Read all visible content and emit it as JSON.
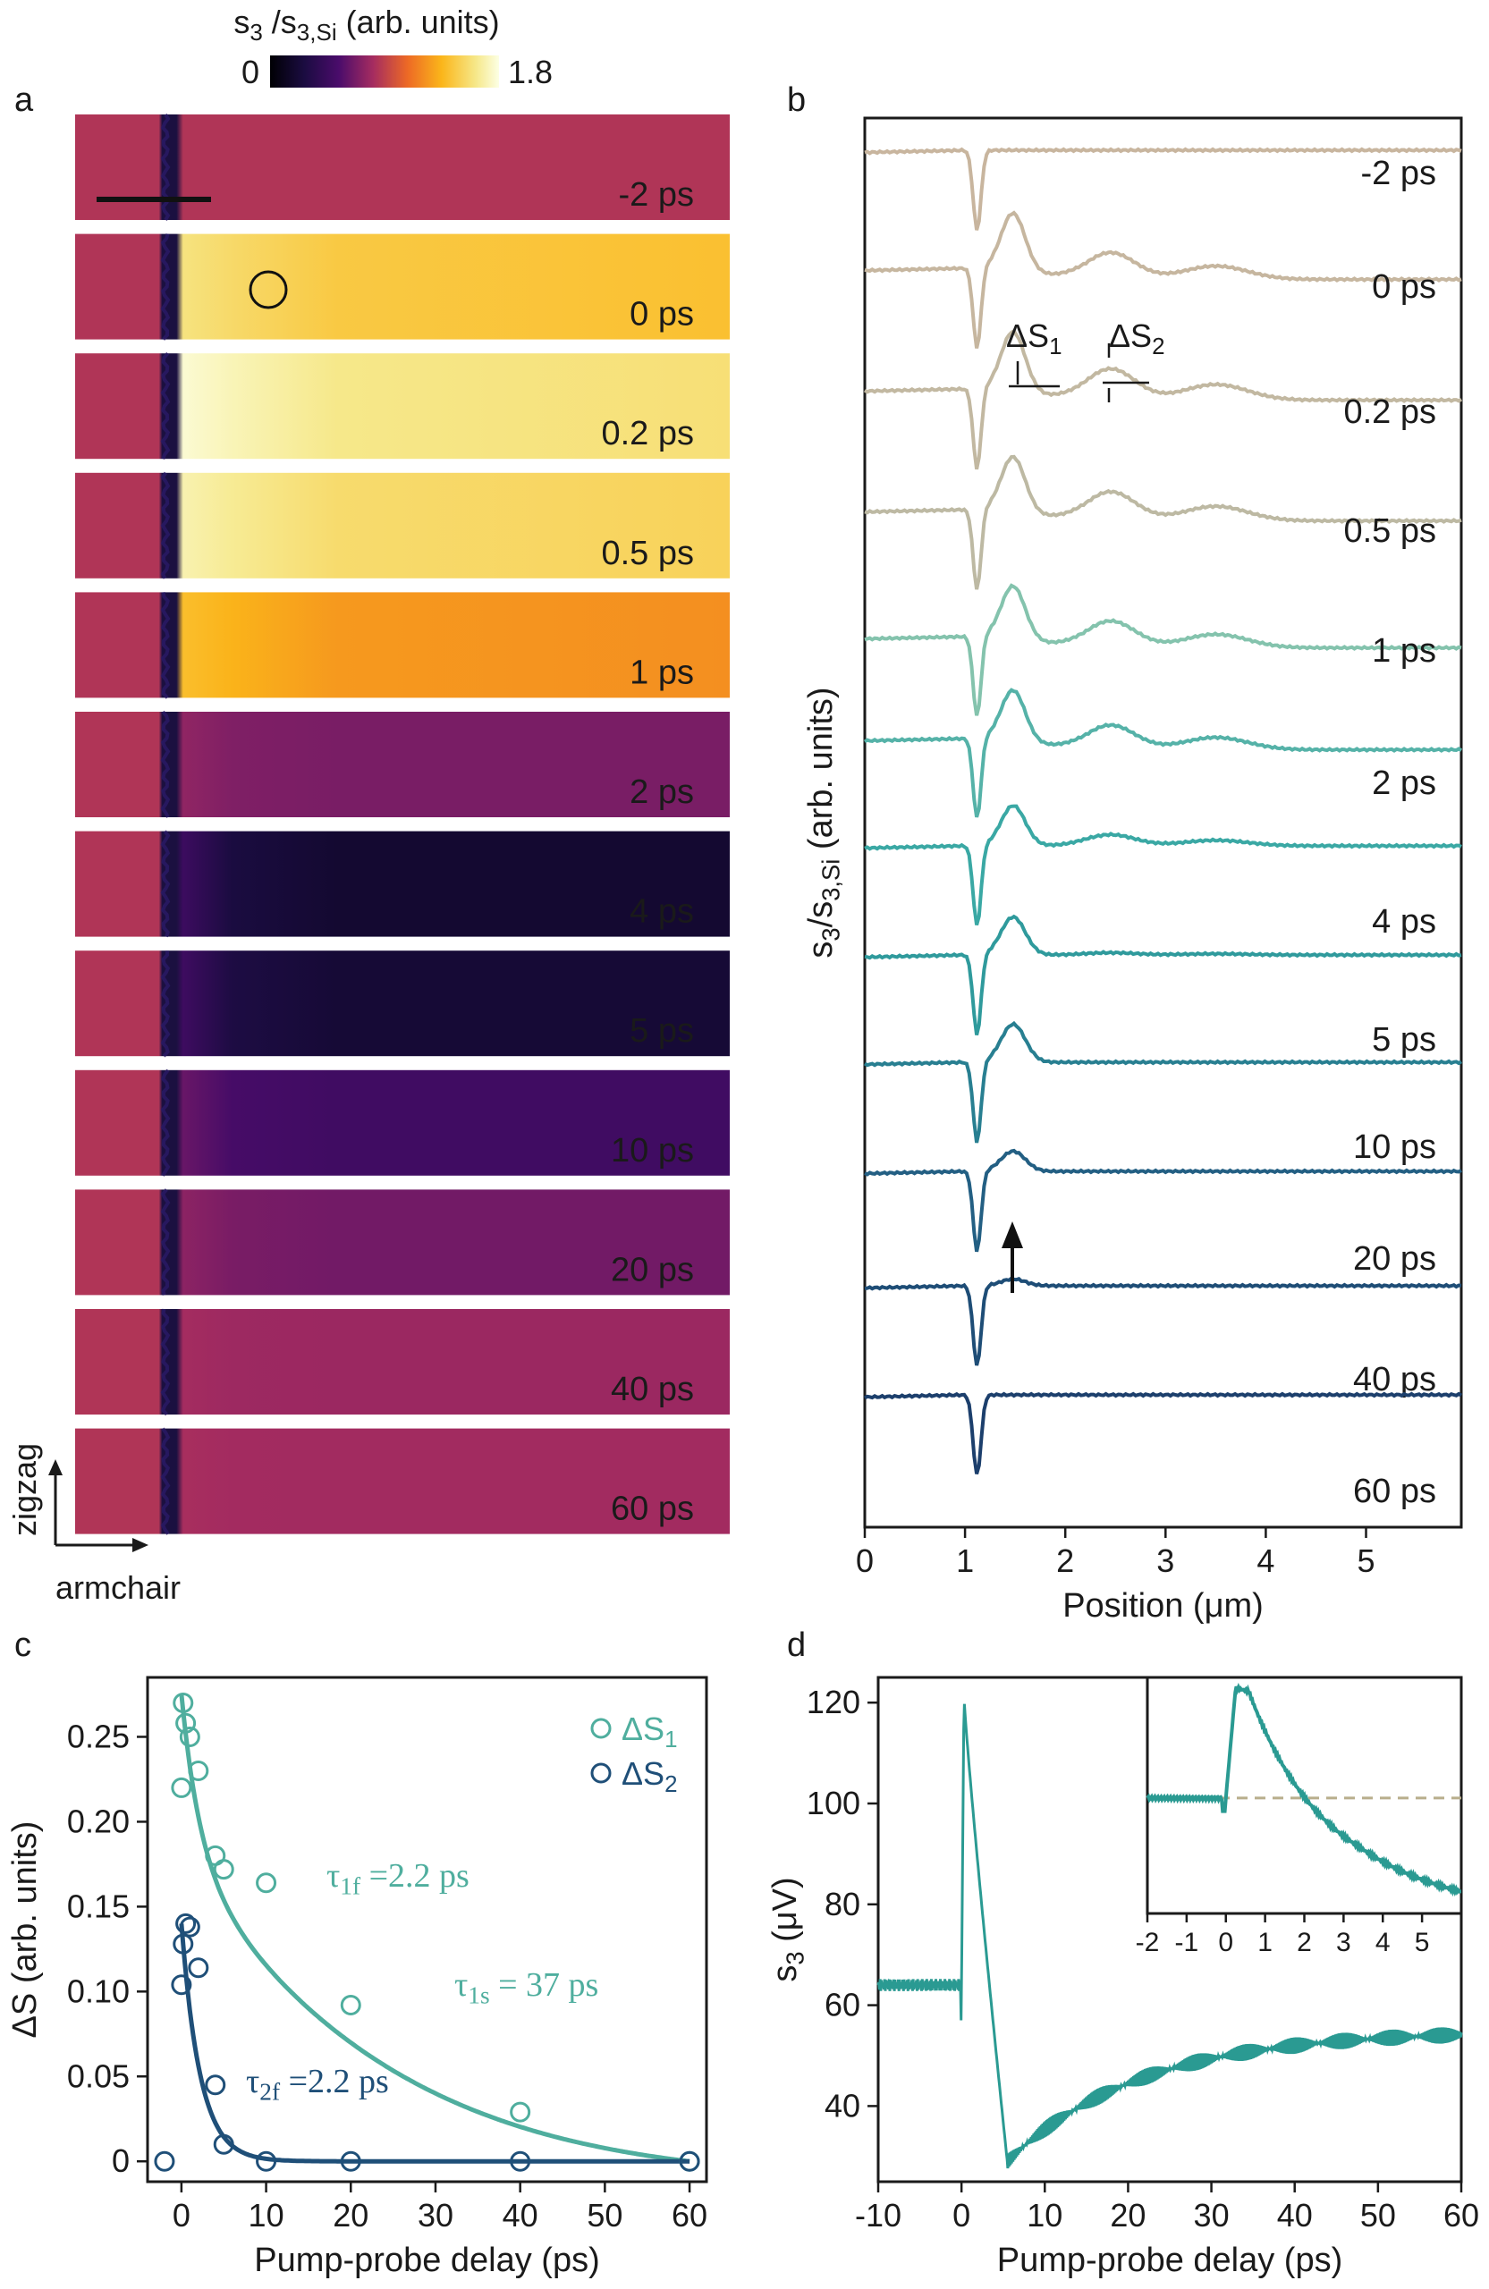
{
  "colorbar": {
    "label_main": "s",
    "label_sub1": "3",
    "label_mid": " /s",
    "label_sub2": "3,Si",
    "label_units": " (arb. units)",
    "min_label": "0",
    "max_label": "1.8",
    "range": [
      0,
      1.8
    ]
  },
  "panel_labels": {
    "a": "a",
    "b": "b",
    "c": "c",
    "d": "d"
  },
  "panel_a": {
    "axis_vertical_label": "zigzag",
    "axis_horizontal_label": "armchair",
    "colors": {
      "edge": "#1b1040",
      "background": "#ee8a4a"
    },
    "strips": [
      {
        "label": "-2 ps",
        "level": 0.85,
        "label_color": "#111111"
      },
      {
        "label": "0 ps",
        "level": 1.45,
        "label_color": "#111111"
      },
      {
        "label": "0.2 ps",
        "level": 1.62,
        "label_color": "#111111"
      },
      {
        "label": "0.5 ps",
        "level": 1.55,
        "label_color": "#111111"
      },
      {
        "label": "1 ps",
        "level": 1.25,
        "label_color": "#111111"
      },
      {
        "label": "2 ps",
        "level": 0.68,
        "label_color": "#ffffff"
      },
      {
        "label": "4 ps",
        "level": 0.2,
        "label_color": "#ffffff"
      },
      {
        "label": "5 ps",
        "level": 0.22,
        "label_color": "#ffffff"
      },
      {
        "label": "10 ps",
        "level": 0.48,
        "label_color": "#ffffff"
      },
      {
        "label": "20 ps",
        "level": 0.66,
        "label_color": "#ffffff"
      },
      {
        "label": "40 ps",
        "level": 0.78,
        "label_color": "#111111"
      },
      {
        "label": "60 ps",
        "level": 0.8,
        "label_color": "#111111"
      }
    ]
  },
  "chart_data": [
    {
      "panel": "b",
      "type": "line",
      "xlabel_main": "Position (",
      "xlabel_mu": "μ",
      "xlabel_rest": "m)",
      "ylabel_main": "s",
      "ylabel_sub1": "3",
      "ylabel_mid": "/s",
      "ylabel_sub2": "3,Si",
      "ylabel_units": " (arb. units)",
      "xlim": [
        0,
        5.95
      ],
      "xticks": [
        "0",
        "1",
        "2",
        "3",
        "4",
        "5"
      ],
      "annotation_ds1_main": "ΔS",
      "annotation_ds1_sub": "1",
      "annotation_ds2_main": "ΔS",
      "annotation_ds2_sub": "2",
      "series": [
        {
          "label": "-2 ps",
          "color": "#c8b59e",
          "amp1": 0.0,
          "amp2": 0.0
        },
        {
          "label": "0 ps",
          "color": "#c6b69f",
          "amp1": 0.26,
          "amp2": 0.12
        },
        {
          "label": "0.2 ps",
          "color": "#c2b8a1",
          "amp1": 0.27,
          "amp2": 0.14
        },
        {
          "label": "0.5 ps",
          "color": "#bdb9a3",
          "amp1": 0.25,
          "amp2": 0.13
        },
        {
          "label": "1 ps",
          "color": "#84c3ad",
          "amp1": 0.24,
          "amp2": 0.12
        },
        {
          "label": "2 ps",
          "color": "#55b2a8",
          "amp1": 0.23,
          "amp2": 0.11
        },
        {
          "label": "4 ps",
          "color": "#3aa8a4",
          "amp1": 0.18,
          "amp2": 0.05
        },
        {
          "label": "5 ps",
          "color": "#2f9a9c",
          "amp1": 0.17,
          "amp2": 0.01
        },
        {
          "label": "10 ps",
          "color": "#287f91",
          "amp1": 0.17,
          "amp2": 0.0
        },
        {
          "label": "20 ps",
          "color": "#235f83",
          "amp1": 0.09,
          "amp2": 0.0
        },
        {
          "label": "40 ps",
          "color": "#1e4d76",
          "amp1": 0.03,
          "amp2": 0.0
        },
        {
          "label": "60 ps",
          "color": "#1c3f6c",
          "amp1": 0.0,
          "amp2": 0.0
        }
      ]
    },
    {
      "panel": "c",
      "type": "scatter",
      "xlabel": "Pump-probe delay (ps)",
      "ylabel": "ΔS (arb. units)",
      "xlim": [
        -4,
        62
      ],
      "ylim": [
        -0.012,
        0.285
      ],
      "xticks": [
        "0",
        "10",
        "20",
        "30",
        "40",
        "50",
        "60"
      ],
      "yticks": [
        "0",
        "0.05",
        "0.10",
        "0.15",
        "0.20",
        "0.25"
      ],
      "series": [
        {
          "name_main": "ΔS",
          "name_sub": "1",
          "color": "#4fae9e",
          "x": [
            0,
            0.2,
            0.5,
            1,
            2,
            4,
            5,
            10,
            20,
            40,
            60
          ],
          "y": [
            0.22,
            0.27,
            0.258,
            0.25,
            0.23,
            0.18,
            0.172,
            0.164,
            0.092,
            0.029,
            0.0
          ],
          "fit_note_main": "τ",
          "fit_note_sub": "1f",
          "fit_note_val": " =2.2 ps",
          "fit_note2_main": "τ",
          "fit_note2_sub": "1s",
          "fit_note2_val": " = 37 ps"
        },
        {
          "name_main": "ΔS",
          "name_sub": "2",
          "color": "#1f4f78",
          "x": [
            -2,
            0,
            0.2,
            0.5,
            1,
            2,
            4,
            5,
            10,
            20,
            40,
            60
          ],
          "y": [
            0.0,
            0.104,
            0.128,
            0.14,
            0.138,
            0.114,
            0.045,
            0.01,
            0.0,
            0.0,
            0.0,
            0.0
          ],
          "fit_note_main": "τ",
          "fit_note_sub": "2f",
          "fit_note_val": " =2.2 ps"
        }
      ]
    },
    {
      "panel": "d",
      "type": "line",
      "xlabel": "Pump-probe delay (ps)",
      "ylabel_main": "s",
      "ylabel_sub": "3",
      "ylabel_mu": " (μ",
      "ylabel_rest": "V)",
      "xlim": [
        -10,
        60
      ],
      "ylim": [
        25,
        125
      ],
      "xticks": [
        "-10",
        "0",
        "10",
        "20",
        "30",
        "40",
        "50",
        "60"
      ],
      "yticks": [
        "40",
        "60",
        "80",
        "100",
        "120"
      ],
      "color": "#2a9a92",
      "key_points": {
        "baseline": 64,
        "peak_t": 0.3,
        "peak": 121,
        "min_t": 5.5,
        "min": 29,
        "end": 55
      },
      "inset": {
        "xlim": [
          -2,
          6
        ],
        "xticks": [
          "-2",
          "-1",
          "0",
          "1",
          "2",
          "3",
          "4",
          "5"
        ],
        "dashed_level": 64
      }
    }
  ]
}
